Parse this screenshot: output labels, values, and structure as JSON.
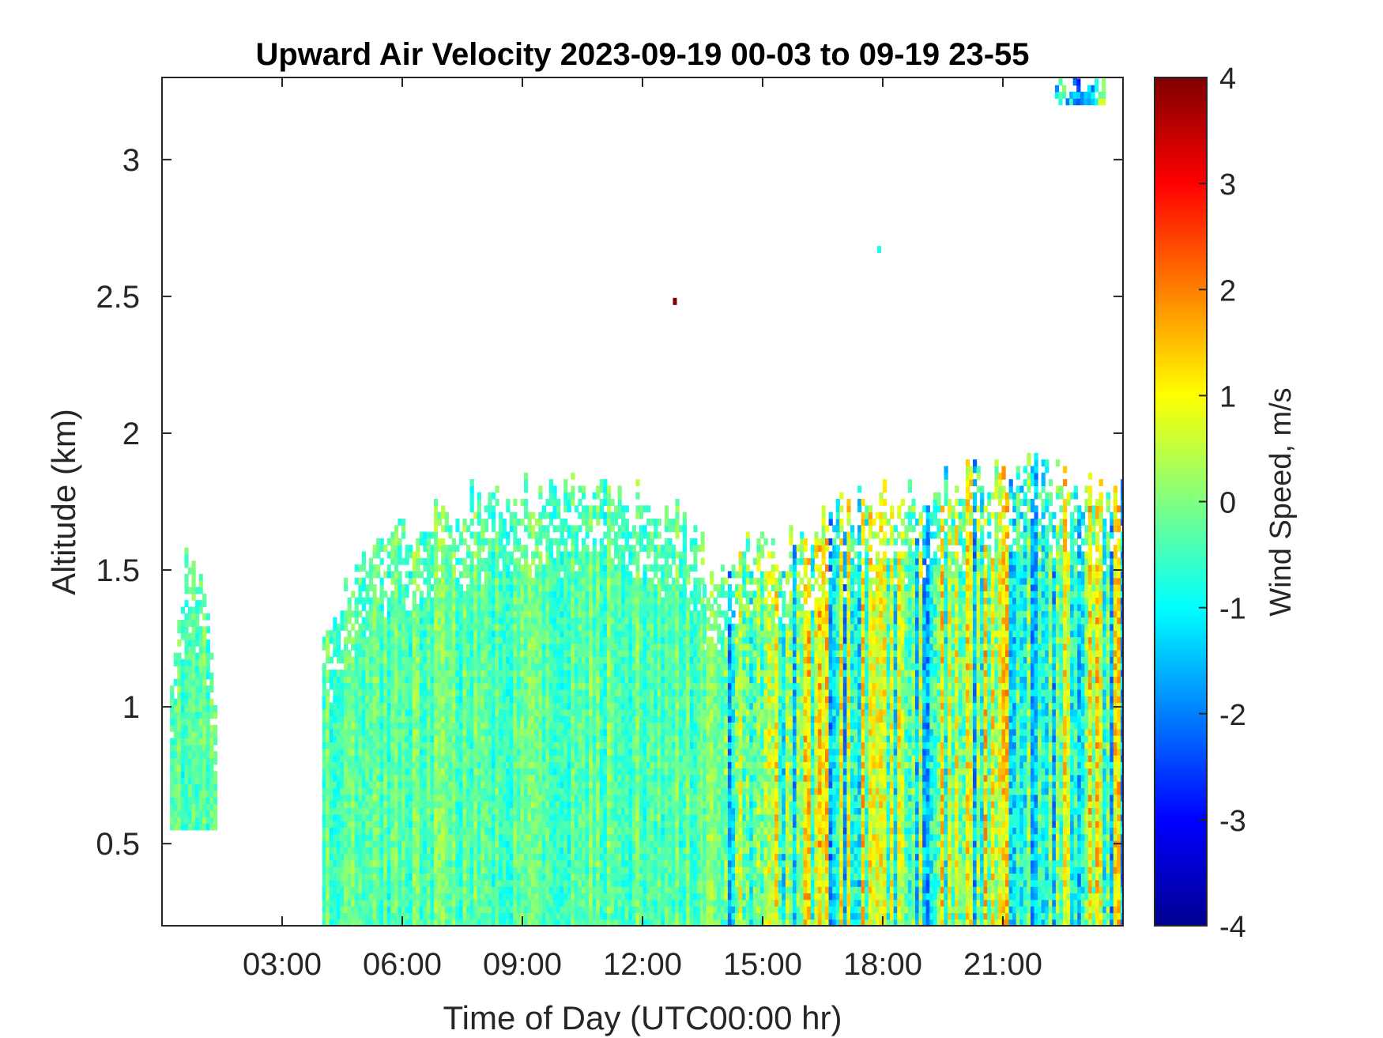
{
  "chart_data": {
    "type": "heatmap",
    "title": "Upward Air Velocity 2023-09-19 00-03 to 09-19 23-55",
    "xlabel": "Time of Day (UTC00:00 hr)",
    "ylabel": "Altitude (km)",
    "x_unit": "hours UTC",
    "xlim": [
      0,
      24
    ],
    "ylim": [
      0.2,
      3.3
    ],
    "x_ticks": [
      {
        "value": 3,
        "label": "03:00"
      },
      {
        "value": 6,
        "label": "06:00"
      },
      {
        "value": 9,
        "label": "09:00"
      },
      {
        "value": 12,
        "label": "12:00"
      },
      {
        "value": 15,
        "label": "15:00"
      },
      {
        "value": 18,
        "label": "18:00"
      },
      {
        "value": 21,
        "label": "21:00"
      }
    ],
    "y_ticks": [
      {
        "value": 0.5,
        "label": "0.5"
      },
      {
        "value": 1,
        "label": "1"
      },
      {
        "value": 1.5,
        "label": "1.5"
      },
      {
        "value": 2,
        "label": "2"
      },
      {
        "value": 2.5,
        "label": "2.5"
      },
      {
        "value": 3,
        "label": "3"
      }
    ],
    "colorbar": {
      "label": "Wind Speed, m/s",
      "colormap": "jet",
      "clim": [
        -4,
        4
      ],
      "ticks": [
        {
          "value": 4,
          "label": "4"
        },
        {
          "value": 3,
          "label": "3"
        },
        {
          "value": 2,
          "label": "2"
        },
        {
          "value": 1,
          "label": "1"
        },
        {
          "value": 0,
          "label": "0"
        },
        {
          "value": -1,
          "label": "-1"
        },
        {
          "value": -2,
          "label": "-2"
        },
        {
          "value": -3,
          "label": "-3"
        },
        {
          "value": -4,
          "label": "-4"
        }
      ]
    },
    "grid": false,
    "regions": [
      {
        "x": [
          0.2,
          1.3
        ],
        "y_top": [
          1.1,
          1.5,
          1.45,
          1.05
        ],
        "y_bottom": 0.55,
        "mean_velocity": -0.3
      },
      {
        "x": [
          4.0,
          13.5
        ],
        "y_top": [
          1.3,
          1.65,
          1.75,
          1.75,
          1.75,
          1.65
        ],
        "y_bottom": 0.2,
        "mean_velocity": -0.3
      },
      {
        "x": [
          13.5,
          24.0
        ],
        "y_top": [
          1.5,
          1.6,
          1.75,
          1.8,
          1.85,
          1.75
        ],
        "y_bottom": 0.2,
        "mean_velocity": -0.2
      },
      {
        "x": [
          22.3,
          23.5
        ],
        "y_top": [
          3.3,
          3.3
        ],
        "y_bottom": 3.2,
        "mean_velocity": -0.8
      }
    ],
    "isolated_points": [
      {
        "x": 12.8,
        "y": 2.48,
        "value": 4.0
      },
      {
        "x": 17.9,
        "y": 2.67,
        "value": -0.8
      }
    ]
  }
}
